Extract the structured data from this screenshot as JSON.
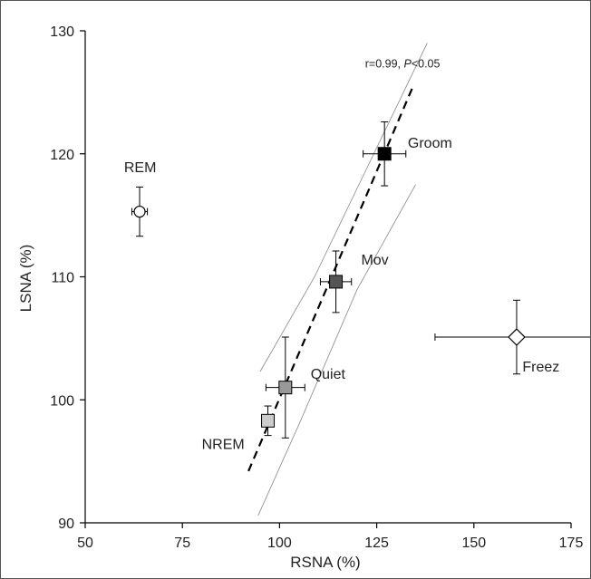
{
  "chart_data": {
    "type": "scatter",
    "xlabel": "RSNA (%)",
    "ylabel": "LSNA (%)",
    "xlim": [
      50,
      175
    ],
    "ylim": [
      90,
      130
    ],
    "xticks": [
      50,
      75,
      100,
      125,
      150,
      175
    ],
    "yticks": [
      90,
      100,
      110,
      120,
      130
    ],
    "grid": false,
    "annotation": {
      "text_prefix": "r=0.99, ",
      "text_p": "P",
      "text_suffix": "<0.05",
      "x": 122,
      "y": 127
    },
    "points": [
      {
        "label": "REM",
        "x": 64,
        "y": 115.3,
        "xerr": 2,
        "yerr": 2,
        "marker": "circle",
        "fill": "#ffffff",
        "label_x": 60,
        "label_y": 118.5
      },
      {
        "label": "Groom",
        "x": 127,
        "y": 120,
        "xerr": 5.5,
        "yerr": 2.6,
        "marker": "square",
        "fill": "#000000",
        "label_x": 133,
        "label_y": 120.5
      },
      {
        "label": "Mov",
        "x": 114.5,
        "y": 109.6,
        "xerr": 4,
        "yerr": 2.5,
        "marker": "square",
        "fill": "#555555",
        "label_x": 121,
        "label_y": 111
      },
      {
        "label": "Quiet",
        "x": 101.5,
        "y": 101,
        "xerr": 5,
        "yerr": 4.1,
        "marker": "square",
        "fill": "#999999",
        "label_x": 108,
        "label_y": 101.7
      },
      {
        "label": "NREM",
        "x": 97,
        "y": 98.3,
        "xerr": 1,
        "yerr": 1.2,
        "marker": "square",
        "fill": "#cccccc",
        "label_x": 80,
        "label_y": 96
      },
      {
        "label": "Freez",
        "x": 161,
        "y": 105.1,
        "xerr": 21,
        "yerr": 3,
        "marker": "diamond",
        "fill": "#ffffff",
        "label_x": 162.5,
        "label_y": 102.3
      }
    ],
    "regression": {
      "x1": 92,
      "y1": 94.2,
      "x2": 134.5,
      "y2": 125.6
    },
    "ci_upper": [
      [
        95,
        102.3
      ],
      [
        109,
        110
      ],
      [
        125,
        120.5
      ],
      [
        138,
        129
      ]
    ],
    "ci_lower": [
      [
        94.5,
        90.6
      ],
      [
        105,
        98
      ],
      [
        120,
        109
      ],
      [
        135,
        117.5
      ]
    ]
  }
}
